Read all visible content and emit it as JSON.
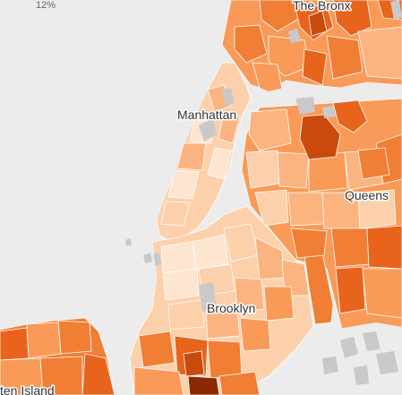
{
  "legend": {
    "tick_label": "12%"
  },
  "colors": {
    "background": "#ececec",
    "park": "#c9c9c9",
    "scale": [
      "#fde5cf",
      "#fcd0aa",
      "#fbb47f",
      "#f99a58",
      "#f07e35",
      "#e8641c",
      "#c94a0c",
      "#8a2a03"
    ]
  },
  "labels": {
    "bronx": "The Bronx",
    "manhattan": "Manhattan",
    "queens": "Queens",
    "brooklyn": "Brooklyn",
    "staten_island": "ten Island"
  }
}
